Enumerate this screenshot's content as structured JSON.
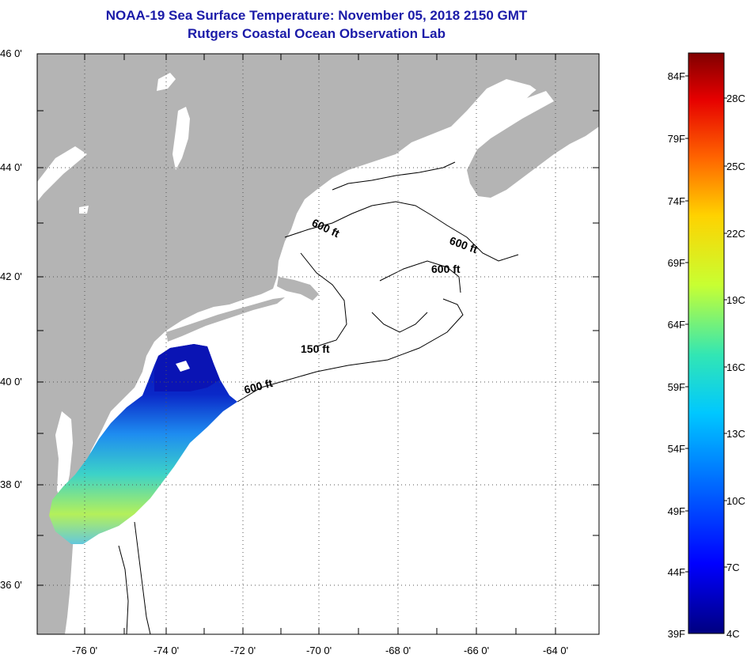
{
  "title": {
    "line1": "NOAA-19 Sea Surface Temperature:  November 05, 2018 2150 GMT",
    "line2": "Rutgers Coastal Ocean Observation Lab"
  },
  "map": {
    "lat_labels": [
      {
        "id": "lat-46",
        "text": "46 0'"
      },
      {
        "id": "lat-44",
        "text": "44 0'"
      },
      {
        "id": "lat-42",
        "text": "42 0'"
      },
      {
        "id": "lat-40",
        "text": "40 0'"
      },
      {
        "id": "lat-38",
        "text": "38 0'"
      },
      {
        "id": "lat-36",
        "text": "36 0'"
      }
    ],
    "lon_labels": [
      {
        "id": "lon-76",
        "text": "-76 0'"
      },
      {
        "id": "lon-74",
        "text": "-74 0'"
      },
      {
        "id": "lon-72",
        "text": "-72 0'"
      },
      {
        "id": "lon-70",
        "text": "-70 0'"
      },
      {
        "id": "lon-68",
        "text": "-68 0'"
      },
      {
        "id": "lon-66",
        "text": "-66 0'"
      },
      {
        "id": "lon-64",
        "text": "-64 0'"
      }
    ],
    "contour_labels": [
      {
        "id": "contour-600-a",
        "text": "600 ft"
      },
      {
        "id": "contour-600-b",
        "text": "600 ft"
      },
      {
        "id": "contour-600-c",
        "text": "600 ft"
      },
      {
        "id": "contour-150",
        "text": "150 ft"
      },
      {
        "id": "contour-600-d",
        "text": "600 ft"
      }
    ],
    "colors": {
      "land": "#b4b4b4",
      "ocean": "#ffffff",
      "contour": "#000000",
      "sst_cold": "#0a14b4",
      "sst_mid": "#1e8cf0",
      "sst_warm": "#b4f05a"
    }
  },
  "colorbar": {
    "fahrenheit": [
      "84F",
      "79F",
      "74F",
      "69F",
      "64F",
      "59F",
      "54F",
      "49F",
      "44F",
      "39F"
    ],
    "celsius": [
      "28C",
      "25C",
      "22C",
      "19C",
      "16C",
      "13C",
      "10C",
      "7C",
      "4C"
    ],
    "gradient": [
      "#000080",
      "#0000ff",
      "#00c8ff",
      "#32e6b4",
      "#c8ff32",
      "#ffd200",
      "#ff6400",
      "#e60000",
      "#800000"
    ]
  }
}
